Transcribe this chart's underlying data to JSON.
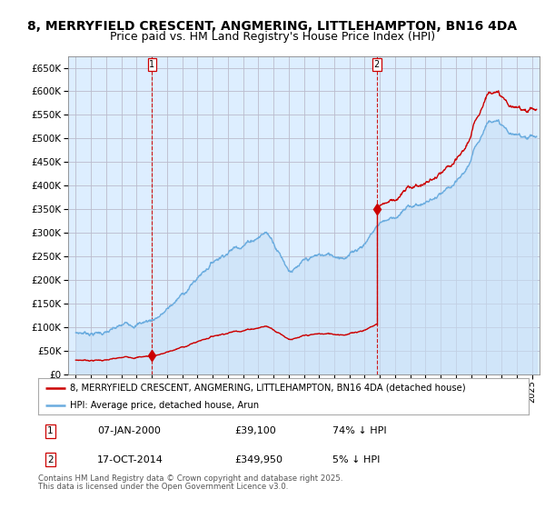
{
  "title1": "8, MERRYFIELD CRESCENT, ANGMERING, LITTLEHAMPTON, BN16 4DA",
  "title2": "Price paid vs. HM Land Registry's House Price Index (HPI)",
  "legend_line1": "8, MERRYFIELD CRESCENT, ANGMERING, LITTLEHAMPTON, BN16 4DA (detached house)",
  "legend_line2": "HPI: Average price, detached house, Arun",
  "annotation1_date": "07-JAN-2000",
  "annotation1_price": "£39,100",
  "annotation1_hpi": "74% ↓ HPI",
  "annotation2_date": "17-OCT-2014",
  "annotation2_price": "£349,950",
  "annotation2_hpi": "5% ↓ HPI",
  "footnote1": "Contains HM Land Registry data © Crown copyright and database right 2025.",
  "footnote2": "This data is licensed under the Open Government Licence v3.0.",
  "sale1_year": 2000.02,
  "sale1_value": 39100,
  "sale2_year": 2014.79,
  "sale2_value": 349950,
  "ylim_min": 0,
  "ylim_max": 675000,
  "xlim_min": 1994.5,
  "xlim_max": 2025.5,
  "background_color": "#ffffff",
  "plot_bg_color": "#ddeeff",
  "grid_color": "#bbbbcc",
  "hpi_color": "#6aacdf",
  "price_paid_color": "#cc0000",
  "annotation_line_color": "#cc0000",
  "title_fontsize": 10,
  "subtitle_fontsize": 9
}
